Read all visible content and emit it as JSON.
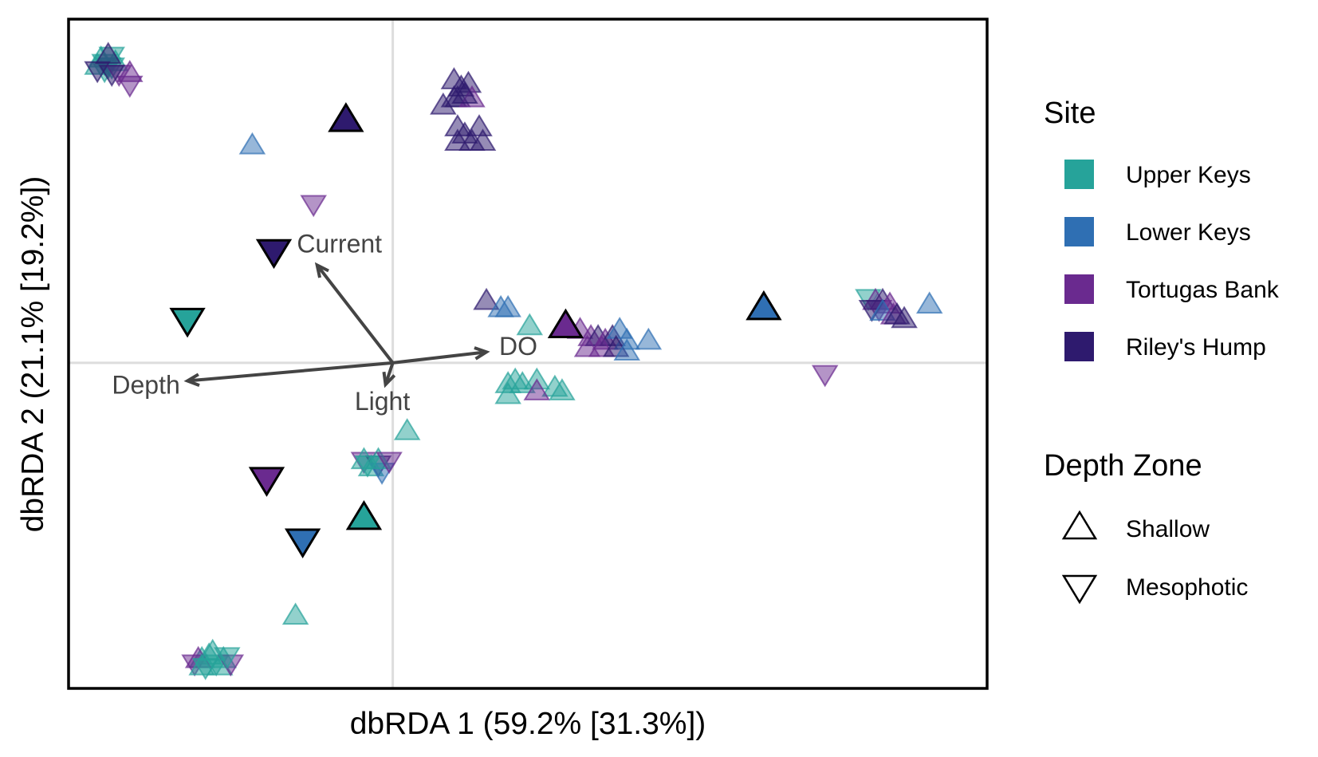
{
  "chart_data": {
    "type": "scatter",
    "xlabel": "dbRDA 1 (59.2% [31.3%])",
    "ylabel": "dbRDA 2 (21.1% [19.2%])",
    "xlim": [
      -0.9,
      1.65
    ],
    "ylim": [
      -0.9,
      0.95
    ],
    "grid": false,
    "reference_lines": {
      "x": 0,
      "y": 0
    },
    "legend_placement": "right",
    "sites": [
      {
        "name": "Upper Keys",
        "color": "#26a39a"
      },
      {
        "name": "Lower Keys",
        "color": "#2f6fb3"
      },
      {
        "name": "Tortugas Bank",
        "color": "#6a2a8f"
      },
      {
        "name": "Riley's Hump",
        "color": "#2e1a6e"
      }
    ],
    "depth_zones": [
      {
        "name": "Shallow",
        "shape": "triangle-up"
      },
      {
        "name": "Mesophotic",
        "shape": "triangle-down"
      }
    ],
    "legend": {
      "site_title": "Site",
      "depth_title": "Depth Zone",
      "site_items": [
        "Upper Keys",
        "Lower Keys",
        "Tortugas Bank",
        "Riley's Hump"
      ],
      "depth_items": [
        "Shallow",
        "Mesophotic"
      ]
    },
    "vectors": [
      {
        "name": "Current",
        "x": -0.21,
        "y": 0.27
      },
      {
        "name": "DO",
        "x": 0.26,
        "y": 0.03
      },
      {
        "name": "Depth",
        "x": -0.57,
        "y": -0.05
      },
      {
        "name": "Light",
        "x": -0.02,
        "y": -0.06
      }
    ],
    "centroids": [
      {
        "site": "Riley's Hump",
        "zone": "Shallow",
        "x": -0.13,
        "y": 0.67
      },
      {
        "site": "Riley's Hump",
        "zone": "Mesophotic",
        "x": -0.33,
        "y": 0.31
      },
      {
        "site": "Upper Keys",
        "zone": "Mesophotic",
        "x": -0.57,
        "y": 0.12
      },
      {
        "site": "Tortugas Bank",
        "zone": "Shallow",
        "x": 0.48,
        "y": 0.1
      },
      {
        "site": "Lower Keys",
        "zone": "Shallow",
        "x": 1.03,
        "y": 0.15
      },
      {
        "site": "Tortugas Bank",
        "zone": "Mesophotic",
        "x": -0.35,
        "y": -0.32
      },
      {
        "site": "Upper Keys",
        "zone": "Shallow",
        "x": -0.08,
        "y": -0.43
      },
      {
        "site": "Lower Keys",
        "zone": "Mesophotic",
        "x": -0.25,
        "y": -0.49
      }
    ],
    "points": [
      {
        "site": "Upper Keys",
        "zone": "Mesophotic",
        "x": -0.8,
        "y": 0.83
      },
      {
        "site": "Upper Keys",
        "zone": "Mesophotic",
        "x": -0.79,
        "y": 0.82
      },
      {
        "site": "Upper Keys",
        "zone": "Shallow",
        "x": -0.81,
        "y": 0.84
      },
      {
        "site": "Upper Keys",
        "zone": "Mesophotic",
        "x": -0.78,
        "y": 0.85
      },
      {
        "site": "Upper Keys",
        "zone": "Shallow",
        "x": -0.77,
        "y": 0.83
      },
      {
        "site": "Upper Keys",
        "zone": "Mesophotic",
        "x": -0.8,
        "y": 0.81
      },
      {
        "site": "Upper Keys",
        "zone": "Shallow",
        "x": -0.82,
        "y": 0.82
      },
      {
        "site": "Upper Keys",
        "zone": "Mesophotic",
        "x": -0.78,
        "y": 0.82
      },
      {
        "site": "Riley's Hump",
        "zone": "Mesophotic",
        "x": -0.82,
        "y": 0.81
      },
      {
        "site": "Riley's Hump",
        "zone": "Shallow",
        "x": -0.79,
        "y": 0.85
      },
      {
        "site": "Tortugas Bank",
        "zone": "Mesophotic",
        "x": -0.76,
        "y": 0.8
      },
      {
        "site": "Tortugas Bank",
        "zone": "Shallow",
        "x": -0.73,
        "y": 0.8
      },
      {
        "site": "Tortugas Bank",
        "zone": "Mesophotic",
        "x": -0.73,
        "y": 0.77
      },
      {
        "site": "Riley's Hump",
        "zone": "Mesophotic",
        "x": -0.78,
        "y": 0.8
      },
      {
        "site": "Lower Keys",
        "zone": "Shallow",
        "x": -0.39,
        "y": 0.6
      },
      {
        "site": "Tortugas Bank",
        "zone": "Mesophotic",
        "x": -0.22,
        "y": 0.44
      },
      {
        "site": "Riley's Hump",
        "zone": "Shallow",
        "x": 0.17,
        "y": 0.78
      },
      {
        "site": "Riley's Hump",
        "zone": "Shallow",
        "x": 0.19,
        "y": 0.76
      },
      {
        "site": "Riley's Hump",
        "zone": "Shallow",
        "x": 0.21,
        "y": 0.77
      },
      {
        "site": "Riley's Hump",
        "zone": "Shallow",
        "x": 0.17,
        "y": 0.73
      },
      {
        "site": "Riley's Hump",
        "zone": "Shallow",
        "x": 0.18,
        "y": 0.73
      },
      {
        "site": "Tortugas Bank",
        "zone": "Shallow",
        "x": 0.22,
        "y": 0.73
      },
      {
        "site": "Riley's Hump",
        "zone": "Shallow",
        "x": 0.2,
        "y": 0.74
      },
      {
        "site": "Riley's Hump",
        "zone": "Shallow",
        "x": 0.14,
        "y": 0.71
      },
      {
        "site": "Riley's Hump",
        "zone": "Shallow",
        "x": 0.18,
        "y": 0.65
      },
      {
        "site": "Riley's Hump",
        "zone": "Shallow",
        "x": 0.2,
        "y": 0.63
      },
      {
        "site": "Riley's Hump",
        "zone": "Shallow",
        "x": 0.24,
        "y": 0.65
      },
      {
        "site": "Riley's Hump",
        "zone": "Shallow",
        "x": 0.18,
        "y": 0.61
      },
      {
        "site": "Riley's Hump",
        "zone": "Shallow",
        "x": 0.22,
        "y": 0.61
      },
      {
        "site": "Riley's Hump",
        "zone": "Shallow",
        "x": 0.25,
        "y": 0.61
      },
      {
        "site": "Riley's Hump",
        "zone": "Shallow",
        "x": 0.26,
        "y": 0.17
      },
      {
        "site": "Lower Keys",
        "zone": "Shallow",
        "x": 0.3,
        "y": 0.15
      },
      {
        "site": "Lower Keys",
        "zone": "Shallow",
        "x": 0.32,
        "y": 0.15
      },
      {
        "site": "Upper Keys",
        "zone": "Shallow",
        "x": 0.38,
        "y": 0.1
      },
      {
        "site": "Tortugas Bank",
        "zone": "Shallow",
        "x": 0.52,
        "y": 0.09
      },
      {
        "site": "Tortugas Bank",
        "zone": "Shallow",
        "x": 0.55,
        "y": 0.07
      },
      {
        "site": "Riley's Hump",
        "zone": "Shallow",
        "x": 0.57,
        "y": 0.07
      },
      {
        "site": "Tortugas Bank",
        "zone": "Shallow",
        "x": 0.59,
        "y": 0.06
      },
      {
        "site": "Riley's Hump",
        "zone": "Shallow",
        "x": 0.61,
        "y": 0.07
      },
      {
        "site": "Lower Keys",
        "zone": "Shallow",
        "x": 0.63,
        "y": 0.09
      },
      {
        "site": "Lower Keys",
        "zone": "Shallow",
        "x": 0.65,
        "y": 0.06
      },
      {
        "site": "Lower Keys",
        "zone": "Shallow",
        "x": 0.71,
        "y": 0.06
      },
      {
        "site": "Tortugas Bank",
        "zone": "Shallow",
        "x": 0.54,
        "y": 0.04
      },
      {
        "site": "Tortugas Bank",
        "zone": "Shallow",
        "x": 0.58,
        "y": 0.04
      },
      {
        "site": "Riley's Hump",
        "zone": "Shallow",
        "x": 0.62,
        "y": 0.04
      },
      {
        "site": "Lower Keys",
        "zone": "Shallow",
        "x": 0.65,
        "y": 0.03
      },
      {
        "site": "Upper Keys",
        "zone": "Shallow",
        "x": 0.32,
        "y": -0.06
      },
      {
        "site": "Upper Keys",
        "zone": "Shallow",
        "x": 0.34,
        "y": -0.05
      },
      {
        "site": "Upper Keys",
        "zone": "Shallow",
        "x": 0.36,
        "y": -0.06
      },
      {
        "site": "Upper Keys",
        "zone": "Shallow",
        "x": 0.4,
        "y": -0.05
      },
      {
        "site": "Upper Keys",
        "zone": "Shallow",
        "x": 0.45,
        "y": -0.07
      },
      {
        "site": "Tortugas Bank",
        "zone": "Shallow",
        "x": 0.4,
        "y": -0.08
      },
      {
        "site": "Upper Keys",
        "zone": "Shallow",
        "x": 0.32,
        "y": -0.09
      },
      {
        "site": "Upper Keys",
        "zone": "Shallow",
        "x": 0.47,
        "y": -0.08
      },
      {
        "site": "Upper Keys",
        "zone": "Shallow",
        "x": 0.04,
        "y": -0.19
      },
      {
        "site": "Tortugas Bank",
        "zone": "Mesophotic",
        "x": -0.08,
        "y": -0.27
      },
      {
        "site": "Upper Keys",
        "zone": "Shallow",
        "x": -0.08,
        "y": -0.27
      },
      {
        "site": "Riley's Hump",
        "zone": "Mesophotic",
        "x": -0.04,
        "y": -0.28
      },
      {
        "site": "Upper Keys",
        "zone": "Shallow",
        "x": -0.06,
        "y": -0.29
      },
      {
        "site": "Lower Keys",
        "zone": "Mesophotic",
        "x": -0.03,
        "y": -0.3
      },
      {
        "site": "Upper Keys",
        "zone": "Mesophotic",
        "x": -0.07,
        "y": -0.28
      },
      {
        "site": "Upper Keys",
        "zone": "Shallow",
        "x": -0.04,
        "y": -0.27
      },
      {
        "site": "Tortugas Bank",
        "zone": "Mesophotic",
        "x": -0.01,
        "y": -0.27
      },
      {
        "site": "Upper Keys",
        "zone": "Shallow",
        "x": -0.27,
        "y": -0.7
      },
      {
        "site": "Upper Keys",
        "zone": "Shallow",
        "x": -0.53,
        "y": -0.82
      },
      {
        "site": "Tortugas Bank",
        "zone": "Mesophotic",
        "x": -0.55,
        "y": -0.83
      },
      {
        "site": "Upper Keys",
        "zone": "Shallow",
        "x": -0.51,
        "y": -0.81
      },
      {
        "site": "Upper Keys",
        "zone": "Mesophotic",
        "x": -0.49,
        "y": -0.83
      },
      {
        "site": "Upper Keys",
        "zone": "Shallow",
        "x": -0.47,
        "y": -0.82
      },
      {
        "site": "Tortugas Bank",
        "zone": "Shallow",
        "x": -0.54,
        "y": -0.82
      },
      {
        "site": "Upper Keys",
        "zone": "Mesophotic",
        "x": -0.52,
        "y": -0.84
      },
      {
        "site": "Upper Keys",
        "zone": "Shallow",
        "x": -0.48,
        "y": -0.84
      },
      {
        "site": "Tortugas Bank",
        "zone": "Mesophotic",
        "x": -0.45,
        "y": -0.83
      },
      {
        "site": "Upper Keys",
        "zone": "Shallow",
        "x": -0.5,
        "y": -0.8
      },
      {
        "site": "Upper Keys",
        "zone": "Mesophotic",
        "x": -0.46,
        "y": -0.81
      },
      {
        "site": "Upper Keys",
        "zone": "Shallow",
        "x": -0.53,
        "y": -0.84
      },
      {
        "site": "Tortugas Bank",
        "zone": "Mesophotic",
        "x": 1.2,
        "y": -0.03
      },
      {
        "site": "Upper Keys",
        "zone": "Mesophotic",
        "x": 1.32,
        "y": 0.18
      },
      {
        "site": "Tortugas Bank",
        "zone": "Shallow",
        "x": 1.34,
        "y": 0.17
      },
      {
        "site": "Riley's Hump",
        "zone": "Shallow",
        "x": 1.36,
        "y": 0.17
      },
      {
        "site": "Tortugas Bank",
        "zone": "Mesophotic",
        "x": 1.35,
        "y": 0.15
      },
      {
        "site": "Tortugas Bank",
        "zone": "Shallow",
        "x": 1.38,
        "y": 0.16
      },
      {
        "site": "Riley's Hump",
        "zone": "Mesophotic",
        "x": 1.33,
        "y": 0.15
      },
      {
        "site": "Lower Keys",
        "zone": "Shallow",
        "x": 1.36,
        "y": 0.14
      },
      {
        "site": "Tortugas Bank",
        "zone": "Shallow",
        "x": 1.39,
        "y": 0.13
      },
      {
        "site": "Riley's Hump",
        "zone": "Shallow",
        "x": 1.4,
        "y": 0.13
      },
      {
        "site": "Riley's Hump",
        "zone": "Shallow",
        "x": 1.42,
        "y": 0.12
      },
      {
        "site": "Lower Keys",
        "zone": "Shallow",
        "x": 1.49,
        "y": 0.16
      }
    ]
  }
}
